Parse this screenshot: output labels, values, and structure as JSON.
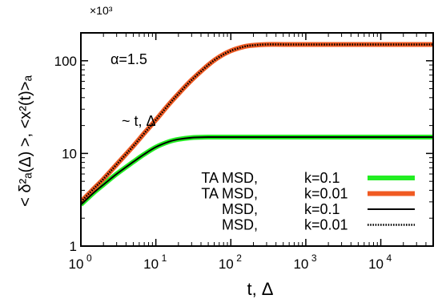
{
  "chart_data": {
    "type": "line",
    "y_multiplier_label": "×10³",
    "xlabel": "t, Δ",
    "ylabel": "< δ²ₐ(Δ) >, <x²(t)>ₐ",
    "xscale": "log",
    "yscale": "log",
    "xlim": [
      1,
      50000
    ],
    "ylim": [
      1,
      200
    ],
    "x_ticks": [
      {
        "value": 1,
        "base": "10",
        "exp": "0"
      },
      {
        "value": 10,
        "base": "10",
        "exp": "1"
      },
      {
        "value": 100,
        "base": "10",
        "exp": "2"
      },
      {
        "value": 1000,
        "base": "10",
        "exp": "3"
      },
      {
        "value": 10000,
        "base": "10",
        "exp": "4"
      }
    ],
    "y_ticks": [
      {
        "value": 1,
        "label": "1"
      },
      {
        "value": 10,
        "label": "10"
      },
      {
        "value": 100,
        "label": "100"
      }
    ],
    "annotations": {
      "alpha": "α=1.5",
      "slope": "~ t, Δ"
    },
    "legend_position": "bottom-right",
    "series": [
      {
        "legend_name": "TA MSD,",
        "legend_param": "k=0.1",
        "color": "#22ee22",
        "style": "thick",
        "x": [
          1,
          1.5,
          2,
          3,
          5,
          7,
          10,
          15,
          20,
          30,
          50,
          100,
          1000,
          50000
        ],
        "y": [
          2.8,
          3.8,
          4.6,
          6.0,
          8.1,
          9.8,
          11.7,
          13.4,
          14.2,
          14.8,
          15.0,
          15.0,
          15.0,
          15.0
        ]
      },
      {
        "legend_name": "TA MSD,",
        "legend_param": "k=0.01",
        "color": "#f05a22",
        "style": "thick",
        "x": [
          1,
          1.5,
          2,
          3,
          5,
          7,
          10,
          15,
          20,
          30,
          50,
          70,
          100,
          150,
          200,
          300,
          500,
          1000,
          50000
        ],
        "y": [
          3.0,
          4.2,
          5.3,
          7.6,
          12.0,
          16.5,
          23.0,
          34.0,
          44.0,
          62.0,
          90.0,
          110.0,
          128.0,
          142.0,
          147.0,
          150.0,
          150.0,
          150.0,
          150.0
        ]
      },
      {
        "legend_name": "MSD,",
        "legend_param": "k=0.1",
        "color": "#000000",
        "style": "solid",
        "x": [
          1,
          1.5,
          2,
          3,
          5,
          7,
          10,
          15,
          20,
          30,
          50,
          100,
          1000,
          50000
        ],
        "y": [
          2.8,
          3.8,
          4.6,
          6.0,
          8.1,
          9.8,
          11.7,
          13.4,
          14.2,
          14.8,
          15.0,
          15.0,
          15.0,
          15.0
        ]
      },
      {
        "legend_name": "MSD,",
        "legend_param": "k=0.01",
        "color": "#000000",
        "style": "dotted",
        "x": [
          1,
          1.5,
          2,
          3,
          5,
          7,
          10,
          15,
          20,
          30,
          50,
          70,
          100,
          150,
          200,
          300,
          500,
          1000,
          50000
        ],
        "y": [
          3.0,
          4.2,
          5.3,
          7.6,
          12.0,
          16.5,
          23.0,
          34.0,
          44.0,
          62.0,
          90.0,
          110.0,
          128.0,
          142.0,
          147.0,
          150.0,
          150.0,
          150.0,
          150.0
        ]
      }
    ]
  }
}
